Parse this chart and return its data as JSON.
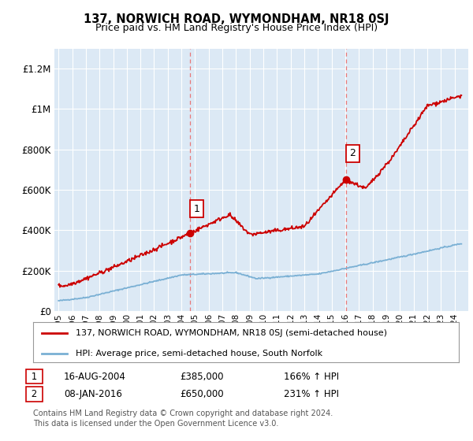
{
  "title": "137, NORWICH ROAD, WYMONDHAM, NR18 0SJ",
  "subtitle": "Price paid vs. HM Land Registry's House Price Index (HPI)",
  "bg_color": "#ffffff",
  "plot_bg_color": "#dce9f5",
  "grid_color": "#ffffff",
  "red_color": "#cc0000",
  "blue_color": "#7ab0d4",
  "dashed_red_color": "#e87878",
  "ylim": [
    0,
    1300000
  ],
  "yticks": [
    0,
    200000,
    400000,
    600000,
    800000,
    1000000,
    1200000
  ],
  "ytick_labels": [
    "£0",
    "£200K",
    "£400K",
    "£600K",
    "£800K",
    "£1M",
    "£1.2M"
  ],
  "sale1_year": 2004.62,
  "sale1_price": 385000,
  "sale1_label": "1",
  "sale1_date": "16-AUG-2004",
  "sale1_hpi": "166% ↑ HPI",
  "sale2_year": 2016.03,
  "sale2_price": 650000,
  "sale2_label": "2",
  "sale2_date": "08-JAN-2016",
  "sale2_hpi": "231% ↑ HPI",
  "legend_line1": "137, NORWICH ROAD, WYMONDHAM, NR18 0SJ (semi-detached house)",
  "legend_line2": "HPI: Average price, semi-detached house, South Norfolk",
  "footer": "Contains HM Land Registry data © Crown copyright and database right 2024.\nThis data is licensed under the Open Government Licence v3.0."
}
